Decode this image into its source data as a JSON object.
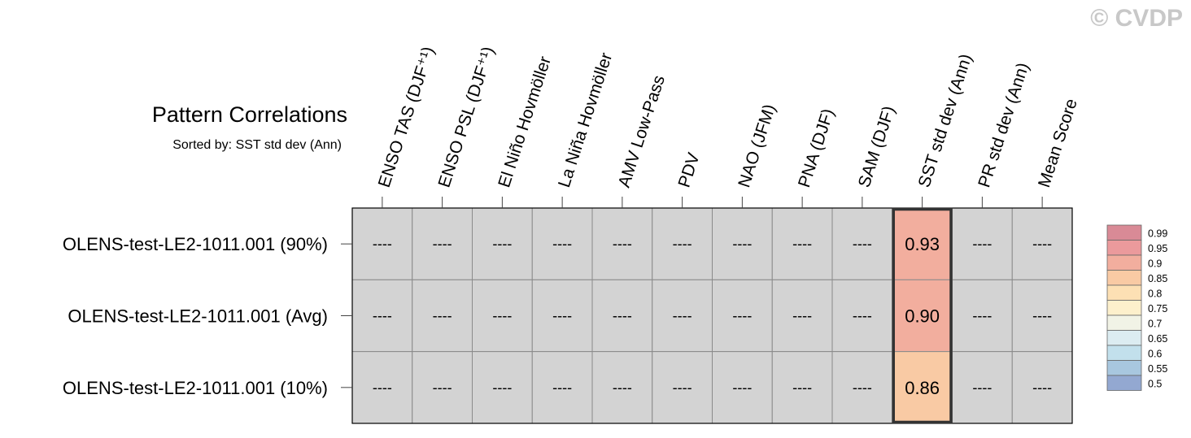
{
  "watermark": "© CVDP",
  "chart_data": {
    "type": "heatmap",
    "title": "Pattern Correlations",
    "subtitle": "Sorted by: SST std dev (Ann)",
    "columns": [
      "ENSO TAS (DJF⁺¹)",
      "ENSO PSL (DJF⁺¹)",
      "El Niño Hovmöller",
      "La Niña Hovmöller",
      "AMV Low-Pass",
      "PDV",
      "NAO (JFM)",
      "PNA (DJF)",
      "SAM (DJF)",
      "SST std dev (Ann)",
      "PR std dev (Ann)",
      "Mean Score"
    ],
    "rows": [
      "OLENS-test-LE2-1011.001 (90%)",
      "OLENS-test-LE2-1011.001 (Avg)",
      "OLENS-test-LE2-1011.001 (10%)"
    ],
    "missing_label": "----",
    "values": [
      [
        null,
        null,
        null,
        null,
        null,
        null,
        null,
        null,
        null,
        0.93,
        null,
        null
      ],
      [
        null,
        null,
        null,
        null,
        null,
        null,
        null,
        null,
        null,
        0.9,
        null,
        null
      ],
      [
        null,
        null,
        null,
        null,
        null,
        null,
        null,
        null,
        null,
        0.86,
        null,
        null
      ]
    ],
    "value_labels": [
      [
        "----",
        "----",
        "----",
        "----",
        "----",
        "----",
        "----",
        "----",
        "----",
        "0.93",
        "----",
        "----"
      ],
      [
        "----",
        "----",
        "----",
        "----",
        "----",
        "----",
        "----",
        "----",
        "----",
        "0.90",
        "----",
        "----"
      ],
      [
        "----",
        "----",
        "----",
        "----",
        "----",
        "----",
        "----",
        "----",
        "----",
        "0.86",
        "----",
        "----"
      ]
    ],
    "highlighted_column": "SST std dev (Ann)",
    "missing_color": "#d3d3d3",
    "colorbar": {
      "labels": [
        "0.99",
        "0.95",
        "0.9",
        "0.85",
        "0.8",
        "0.75",
        "0.7",
        "0.65",
        "0.6",
        "0.55",
        "0.5"
      ],
      "colors": [
        "#d98a96",
        "#eb9a9c",
        "#f2ae9e",
        "#f9caa4",
        "#fde0b4",
        "#fdf0cc",
        "#f1f3e6",
        "#dcecf1",
        "#c2e0ec",
        "#a8c7df",
        "#93a8d1"
      ]
    }
  }
}
